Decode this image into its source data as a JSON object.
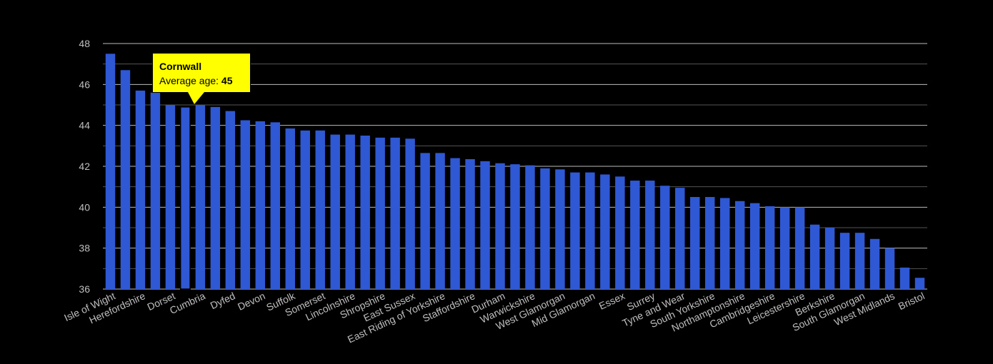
{
  "chart_data": {
    "type": "bar",
    "title": "",
    "xlabel": "",
    "ylabel": "",
    "ylim": [
      36,
      48
    ],
    "y_ticks": [
      36,
      38,
      40,
      42,
      44,
      46,
      48
    ],
    "grid": true,
    "colors": {
      "background": "#000000",
      "bar": "#2f58d4",
      "tooltip": "#ffff00"
    },
    "categories": [
      "Isle of Wight",
      "",
      "Herefordshire",
      "",
      "Dorset",
      "",
      "Cumbria",
      "",
      "Dyfed",
      "",
      "Devon",
      "",
      "Suffolk",
      "",
      "Somerset",
      "",
      "Lincolnshire",
      "",
      "Shropshire",
      "",
      "East Sussex",
      "",
      "East Riding of Yorkshire",
      "",
      "Staffordshire",
      "",
      "Durham",
      "",
      "Warwickshire",
      "",
      "West Glamorgan",
      "",
      "Mid Glamorgan",
      "",
      "Essex",
      "",
      "Surrey",
      "",
      "Tyne and Wear",
      "",
      "South Yorkshire",
      "",
      "Northamptonshire",
      "",
      "Cambridgeshire",
      "",
      "Leicestershire",
      "",
      "Berkshire",
      "",
      "South Glamorgan",
      "",
      "West Midlands",
      "",
      "Bristol"
    ],
    "values": [
      47.5,
      46.7,
      45.7,
      45.6,
      45.0,
      44.9,
      45.0,
      44.9,
      44.7,
      44.25,
      44.2,
      44.15,
      43.85,
      43.75,
      43.75,
      43.55,
      43.55,
      43.5,
      43.4,
      43.4,
      43.35,
      42.65,
      42.65,
      42.4,
      42.35,
      42.25,
      42.15,
      42.1,
      42.05,
      41.9,
      41.85,
      41.7,
      41.7,
      41.6,
      41.5,
      41.3,
      41.3,
      41.05,
      40.95,
      40.5,
      40.5,
      40.45,
      40.3,
      40.2,
      40.05,
      40.0,
      40.0,
      39.15,
      39.0,
      38.75,
      38.75,
      38.45,
      38.0,
      37.05,
      36.55
    ],
    "highlight_index": 5
  },
  "tooltip": {
    "title": "Cornwall",
    "label": "Average age: ",
    "value": "45"
  }
}
